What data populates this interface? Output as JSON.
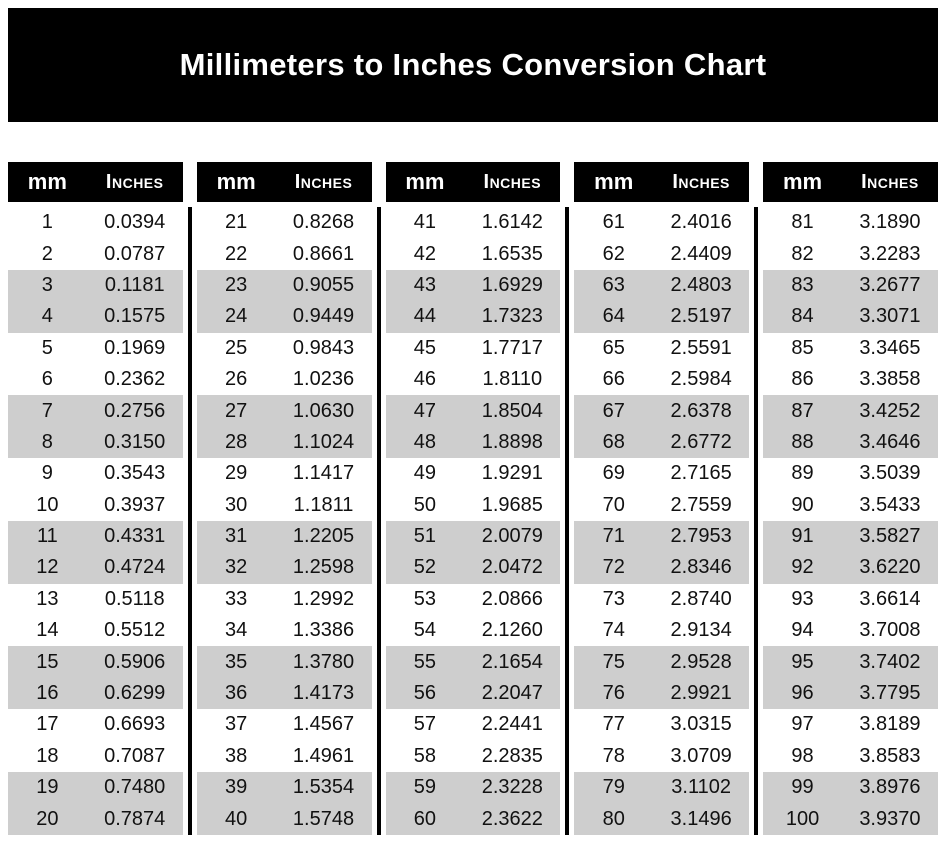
{
  "title": "Millimeters to Inches Conversion Chart",
  "column_headers": {
    "mm": "mm",
    "inches": "Inches"
  },
  "colors": {
    "banner_bg": "#000000",
    "header_bg": "#000000",
    "header_text": "#ffffff",
    "shaded_row": "#cecece",
    "body_text": "#111111"
  },
  "tables": [
    {
      "rows": [
        [
          "1",
          "0.0394"
        ],
        [
          "2",
          "0.0787"
        ],
        [
          "3",
          "0.1181"
        ],
        [
          "4",
          "0.1575"
        ],
        [
          "5",
          "0.1969"
        ],
        [
          "6",
          "0.2362"
        ],
        [
          "7",
          "0.2756"
        ],
        [
          "8",
          "0.3150"
        ],
        [
          "9",
          "0.3543"
        ],
        [
          "10",
          "0.3937"
        ],
        [
          "11",
          "0.4331"
        ],
        [
          "12",
          "0.4724"
        ],
        [
          "13",
          "0.5118"
        ],
        [
          "14",
          "0.5512"
        ],
        [
          "15",
          "0.5906"
        ],
        [
          "16",
          "0.6299"
        ],
        [
          "17",
          "0.6693"
        ],
        [
          "18",
          "0.7087"
        ],
        [
          "19",
          "0.7480"
        ],
        [
          "20",
          "0.7874"
        ]
      ]
    },
    {
      "rows": [
        [
          "21",
          "0.8268"
        ],
        [
          "22",
          "0.8661"
        ],
        [
          "23",
          "0.9055"
        ],
        [
          "24",
          "0.9449"
        ],
        [
          "25",
          "0.9843"
        ],
        [
          "26",
          "1.0236"
        ],
        [
          "27",
          "1.0630"
        ],
        [
          "28",
          "1.1024"
        ],
        [
          "29",
          "1.1417"
        ],
        [
          "30",
          "1.1811"
        ],
        [
          "31",
          "1.2205"
        ],
        [
          "32",
          "1.2598"
        ],
        [
          "33",
          "1.2992"
        ],
        [
          "34",
          "1.3386"
        ],
        [
          "35",
          "1.3780"
        ],
        [
          "36",
          "1.4173"
        ],
        [
          "37",
          "1.4567"
        ],
        [
          "38",
          "1.4961"
        ],
        [
          "39",
          "1.5354"
        ],
        [
          "40",
          "1.5748"
        ]
      ]
    },
    {
      "rows": [
        [
          "41",
          "1.6142"
        ],
        [
          "42",
          "1.6535"
        ],
        [
          "43",
          "1.6929"
        ],
        [
          "44",
          "1.7323"
        ],
        [
          "45",
          "1.7717"
        ],
        [
          "46",
          "1.8110"
        ],
        [
          "47",
          "1.8504"
        ],
        [
          "48",
          "1.8898"
        ],
        [
          "49",
          "1.9291"
        ],
        [
          "50",
          "1.9685"
        ],
        [
          "51",
          "2.0079"
        ],
        [
          "52",
          "2.0472"
        ],
        [
          "53",
          "2.0866"
        ],
        [
          "54",
          "2.1260"
        ],
        [
          "55",
          "2.1654"
        ],
        [
          "56",
          "2.2047"
        ],
        [
          "57",
          "2.2441"
        ],
        [
          "58",
          "2.2835"
        ],
        [
          "59",
          "2.3228"
        ],
        [
          "60",
          "2.3622"
        ]
      ]
    },
    {
      "rows": [
        [
          "61",
          "2.4016"
        ],
        [
          "62",
          "2.4409"
        ],
        [
          "63",
          "2.4803"
        ],
        [
          "64",
          "2.5197"
        ],
        [
          "65",
          "2.5591"
        ],
        [
          "66",
          "2.5984"
        ],
        [
          "67",
          "2.6378"
        ],
        [
          "68",
          "2.6772"
        ],
        [
          "69",
          "2.7165"
        ],
        [
          "70",
          "2.7559"
        ],
        [
          "71",
          "2.7953"
        ],
        [
          "72",
          "2.8346"
        ],
        [
          "73",
          "2.8740"
        ],
        [
          "74",
          "2.9134"
        ],
        [
          "75",
          "2.9528"
        ],
        [
          "76",
          "2.9921"
        ],
        [
          "77",
          "3.0315"
        ],
        [
          "78",
          "3.0709"
        ],
        [
          "79",
          "3.1102"
        ],
        [
          "80",
          "3.1496"
        ]
      ]
    },
    {
      "rows": [
        [
          "81",
          "3.1890"
        ],
        [
          "82",
          "3.2283"
        ],
        [
          "83",
          "3.2677"
        ],
        [
          "84",
          "3.3071"
        ],
        [
          "85",
          "3.3465"
        ],
        [
          "86",
          "3.3858"
        ],
        [
          "87",
          "3.4252"
        ],
        [
          "88",
          "3.4646"
        ],
        [
          "89",
          "3.5039"
        ],
        [
          "90",
          "3.5433"
        ],
        [
          "91",
          "3.5827"
        ],
        [
          "92",
          "3.6220"
        ],
        [
          "93",
          "3.6614"
        ],
        [
          "94",
          "3.7008"
        ],
        [
          "95",
          "3.7402"
        ],
        [
          "96",
          "3.7795"
        ],
        [
          "97",
          "3.8189"
        ],
        [
          "98",
          "3.8583"
        ],
        [
          "99",
          "3.8976"
        ],
        [
          "100",
          "3.9370"
        ]
      ]
    }
  ]
}
